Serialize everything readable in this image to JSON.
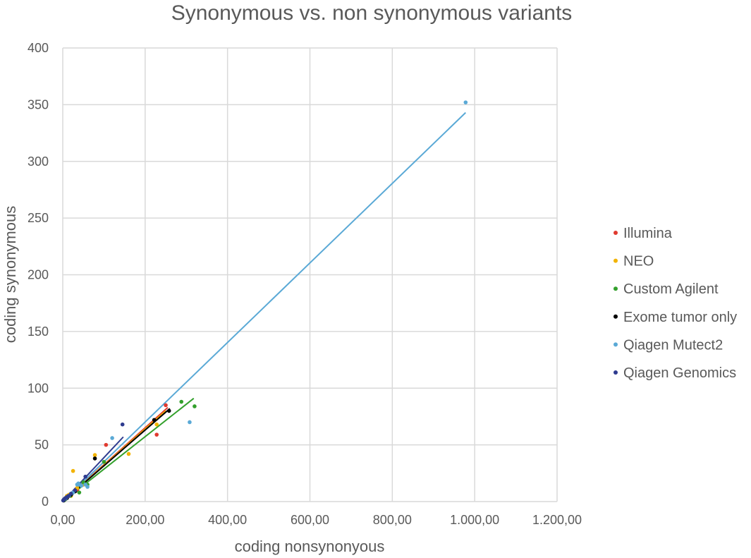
{
  "chart_data": {
    "type": "scatter",
    "title": "Synonymous vs. non synonymous variants",
    "xlabel": "coding nonsynonyous",
    "ylabel": "coding synonymous",
    "xlim": [
      0,
      1200
    ],
    "ylim": [
      0,
      400
    ],
    "x_ticks": [
      0,
      200,
      400,
      600,
      800,
      1000,
      1200
    ],
    "x_tick_labels": [
      "0,00",
      "200,00",
      "400,00",
      "600,00",
      "800,00",
      "1.000,00",
      "1.200,00"
    ],
    "y_ticks": [
      0,
      50,
      100,
      150,
      200,
      250,
      300,
      350,
      400
    ],
    "y_tick_labels": [
      "0",
      "50",
      "100",
      "150",
      "200",
      "250",
      "300",
      "350",
      "400"
    ],
    "grid": true,
    "legend_position": "right",
    "trendlines": true,
    "series": [
      {
        "name": "Illumina",
        "color": "#e03a2f",
        "points": [
          [
            2,
            1
          ],
          [
            5,
            2
          ],
          [
            8,
            3
          ],
          [
            12,
            4
          ],
          [
            18,
            6
          ],
          [
            25,
            8
          ],
          [
            35,
            10
          ],
          [
            50,
            15
          ],
          [
            105,
            50
          ],
          [
            228,
            59
          ],
          [
            250,
            85
          ]
        ],
        "trend": [
          [
            0,
            0
          ],
          [
            255,
            83
          ]
        ]
      },
      {
        "name": "NEO",
        "color": "#f2b300",
        "points": [
          [
            2,
            1
          ],
          [
            4,
            2
          ],
          [
            6,
            3
          ],
          [
            10,
            5
          ],
          [
            15,
            6
          ],
          [
            20,
            5
          ],
          [
            25,
            27
          ],
          [
            35,
            12
          ],
          [
            50,
            15
          ],
          [
            78,
            41
          ],
          [
            160,
            42
          ],
          [
            228,
            68
          ]
        ],
        "trend": [
          [
            0,
            0
          ],
          [
            250,
            80
          ]
        ]
      },
      {
        "name": "Custom Agilent",
        "color": "#33a02c",
        "points": [
          [
            3,
            1
          ],
          [
            6,
            2
          ],
          [
            10,
            3
          ],
          [
            18,
            5
          ],
          [
            22,
            7
          ],
          [
            30,
            9
          ],
          [
            40,
            8
          ],
          [
            50,
            17
          ],
          [
            60,
            15
          ],
          [
            100,
            35
          ],
          [
            288,
            88
          ],
          [
            320,
            84
          ]
        ],
        "trend": [
          [
            0,
            0
          ],
          [
            318,
            91
          ]
        ]
      },
      {
        "name": "Exome tumor only",
        "color": "#000000",
        "points": [
          [
            2,
            1
          ],
          [
            5,
            2
          ],
          [
            10,
            3
          ],
          [
            20,
            6
          ],
          [
            30,
            9
          ],
          [
            78,
            38
          ],
          [
            222,
            72
          ],
          [
            258,
            80
          ]
        ],
        "trend": [
          [
            0,
            0
          ],
          [
            260,
            82
          ]
        ]
      },
      {
        "name": "Qiagen Mutect2",
        "color": "#5aa9d6",
        "points": [
          [
            4,
            2
          ],
          [
            8,
            3
          ],
          [
            15,
            5
          ],
          [
            25,
            8
          ],
          [
            35,
            15
          ],
          [
            38,
            16
          ],
          [
            45,
            14
          ],
          [
            55,
            15
          ],
          [
            60,
            13
          ],
          [
            120,
            56
          ],
          [
            308,
            70
          ],
          [
            978,
            352
          ]
        ],
        "trend": [
          [
            0,
            0
          ],
          [
            978,
            343
          ]
        ]
      },
      {
        "name": "Qiagen Genomics",
        "color": "#2e3b8f",
        "points": [
          [
            1,
            1
          ],
          [
            3,
            2
          ],
          [
            6,
            3
          ],
          [
            10,
            4
          ],
          [
            14,
            5
          ],
          [
            20,
            7
          ],
          [
            30,
            10
          ],
          [
            55,
            22
          ],
          [
            145,
            68
          ]
        ],
        "trend": [
          [
            0,
            0
          ],
          [
            147,
            57
          ]
        ]
      }
    ]
  }
}
